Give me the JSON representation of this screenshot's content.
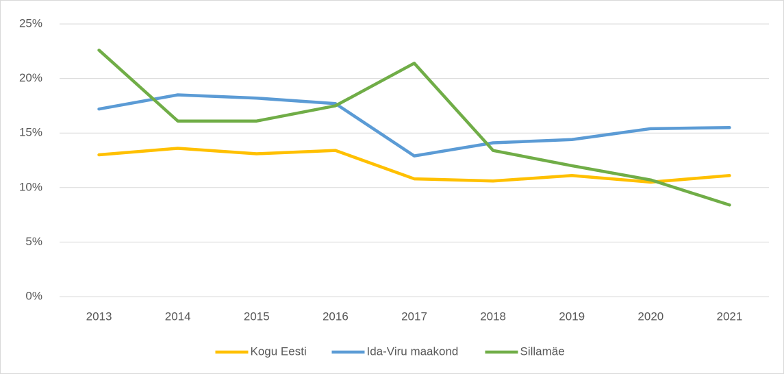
{
  "chart_data": {
    "type": "line",
    "categories": [
      "2013",
      "2014",
      "2015",
      "2016",
      "2017",
      "2018",
      "2019",
      "2020",
      "2021"
    ],
    "series": [
      {
        "name": "Kogu Eesti",
        "color": "#ffc000",
        "values": [
          13.0,
          13.6,
          13.1,
          13.4,
          10.8,
          10.6,
          11.1,
          10.5,
          11.1
        ]
      },
      {
        "name": "Ida-Viru maakond",
        "color": "#5b9bd5",
        "values": [
          17.2,
          18.5,
          18.2,
          17.7,
          12.9,
          14.1,
          14.4,
          15.4,
          15.5
        ]
      },
      {
        "name": "Sillamäe",
        "color": "#70ad47",
        "values": [
          22.6,
          16.1,
          16.1,
          17.5,
          21.4,
          13.4,
          12.0,
          10.7,
          8.4
        ]
      }
    ],
    "ylim": [
      0,
      25
    ],
    "yticks": [
      {
        "value": 0,
        "label": "0%"
      },
      {
        "value": 5,
        "label": "5%"
      },
      {
        "value": 10,
        "label": "10%"
      },
      {
        "value": 15,
        "label": "15%"
      },
      {
        "value": 20,
        "label": "20%"
      },
      {
        "value": 25,
        "label": "25%"
      }
    ],
    "grid": true,
    "legend": "bottom"
  }
}
